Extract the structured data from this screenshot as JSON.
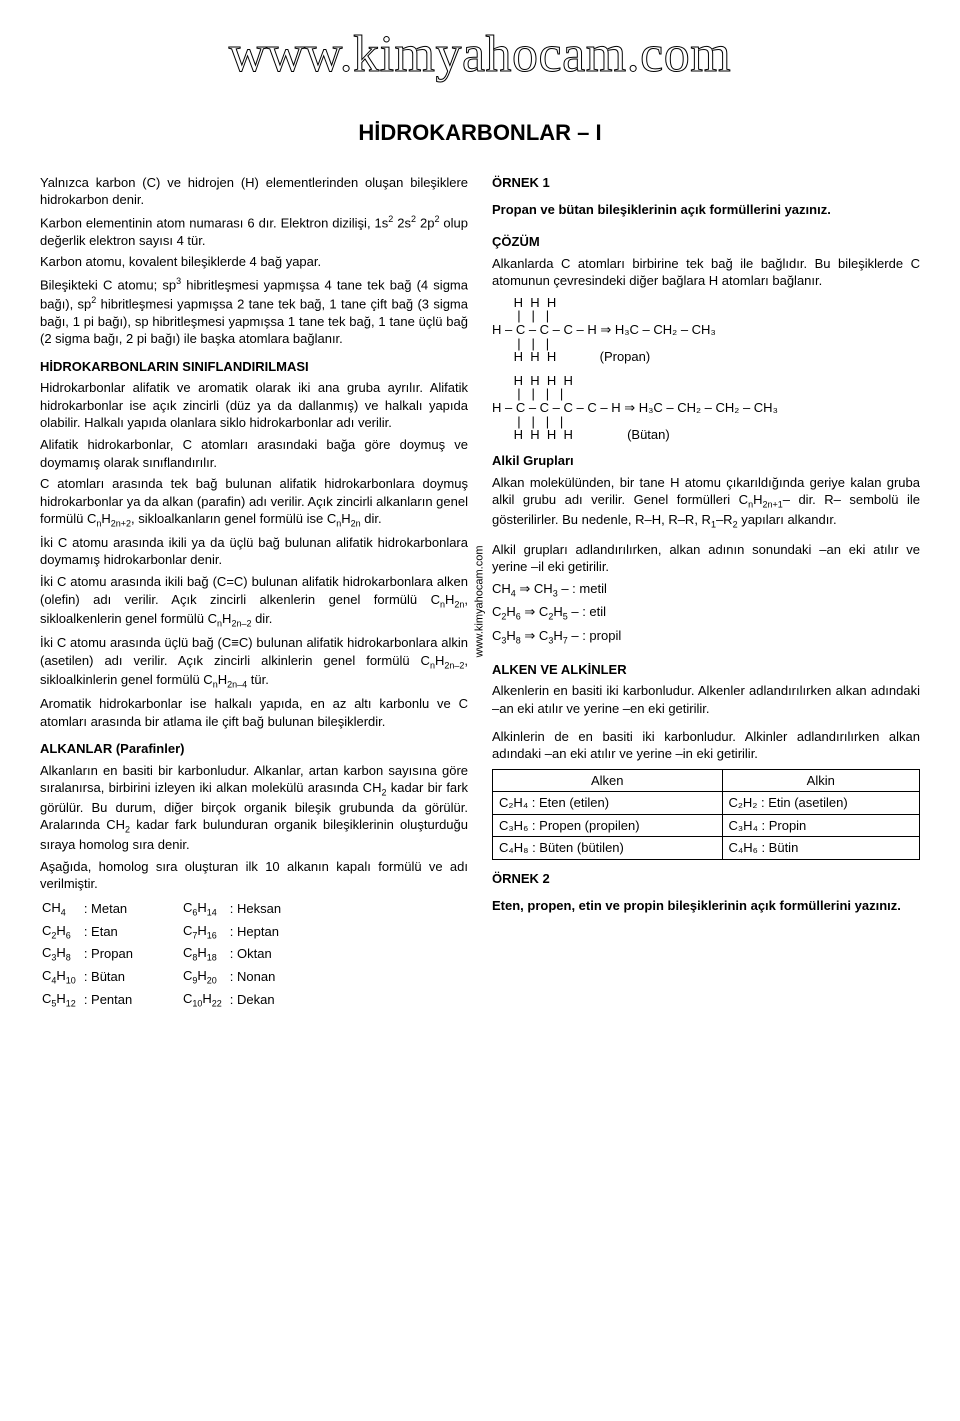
{
  "site_banner": "www.kimyahocam.com",
  "page_title": "HİDROKARBONLAR – I",
  "vertical_label": "www.kimyahocam.com",
  "left": {
    "p1": "Yalnızca karbon (C) ve hidrojen (H) elementlerinden oluşan bileşiklere hidrokarbon denir.",
    "p2a": "Karbon elementinin atom numarası 6 dır. Elektron dizilişi, 1s",
    "p2b": " 2s",
    "p2c": " 2p",
    "p2d": " olup değerlik elektron sayısı 4 tür.",
    "p3": "Karbon atomu, kovalent bileşiklerde 4 bağ yapar.",
    "p4a": "Bileşikteki C atomu; sp",
    "p4b": " hibritleşmesi yapmışsa 4 tane tek bağ (4 sigma bağı), sp",
    "p4c": " hibritleşmesi yapmışsa 2 tane tek bağ, 1 tane çift bağ (3 sigma bağı, 1 pi bağı), sp hibritleşmesi yapmışsa 1 tane tek bağ, 1 tane üçlü bağ (2 sigma bağı, 2 pi bağı) ile başka atomlara bağlanır.",
    "h_sinif": "HİDROKARBONLARIN SINIFLANDIRILMASI",
    "p5": "Hidrokarbonlar alifatik ve aromatik olarak iki ana gruba ayrılır. Alifatik hidrokarbonlar ise açık zincirli (düz ya da dallanmış) ve halkalı yapıda olabilir. Halkalı yapıda olanlara siklo hidrokarbonlar adı verilir.",
    "p6": "Alifatik hidrokarbonlar, C atomları arasındaki bağa göre doymuş ve doymamış olarak sınıflandırılır.",
    "p7a": "C atomları arasında tek bağ bulunan alifatik hidrokarbonlara doymuş hidrokarbonlar ya da alkan (parafin) adı verilir. Açık zincirli alkanların genel formülü C",
    "p7b": ", sikloalkanların genel formülü ise C",
    "p7c": " dir.",
    "p8": "İki C atomu arasında ikili ya da üçlü bağ bulunan alifatik hidrokarbonlara doymamış hidrokarbonlar denir.",
    "p9a": "İki C atomu arasında ikili bağ (C=C) bulunan alifatik hidrokarbonlara alken (olefin) adı verilir. Açık zincirli alkenlerin genel formülü C",
    "p9b": ", sikloalkenlerin genel formülü C",
    "p9c": " dir.",
    "p10a": "İki C atomu arasında üçlü bağ (C≡C) bulunan alifatik hidrokarbonlara alkin (asetilen) adı verilir. Açık zincirli alkinlerin genel formülü C",
    "p10b": ", sikloalkinlerin genel formülü C",
    "p10c": " tür.",
    "p11": "Aromatik hidrokarbonlar ise halkalı yapıda, en az altı karbonlu ve C atomları arasında bir atlama ile çift bağ bulunan bileşiklerdir.",
    "h_alkan": "ALKANLAR (Parafinler)",
    "p12a": "Alkanların en basiti bir karbonludur. Alkanlar, artan karbon sayısına göre sıralanırsa, birbirini izleyen iki alkan molekülü arasında CH",
    "p12b": " kadar bir fark görülür. Bu durum, diğer birçok organik bileşik grubunda da görülür. Aralarında CH",
    "p12c": " kadar fark bulunduran organik bileşiklerinin oluşturduğu sıraya homolog sıra denir.",
    "p13": "Aşağıda, homolog sıra oluşturan ilk 10 alkanın kapalı formülü ve adı verilmiştir.",
    "alkanes_left": [
      {
        "f": "CH",
        "s": "4",
        "n": ": Metan"
      },
      {
        "f": "C",
        "s2": "2",
        "f2": "H",
        "s": "6",
        "n": ": Etan"
      },
      {
        "f": "C",
        "s2": "3",
        "f2": "H",
        "s": "8",
        "n": ": Propan"
      },
      {
        "f": "C",
        "s2": "4",
        "f2": "H",
        "s": "10",
        "n": ": Bütan"
      },
      {
        "f": "C",
        "s2": "5",
        "f2": "H",
        "s": "12",
        "n": ": Pentan"
      }
    ],
    "alkanes_right": [
      {
        "f": "C",
        "s2": "6",
        "f2": "H",
        "s": "14",
        "n": ": Heksan"
      },
      {
        "f": "C",
        "s2": "7",
        "f2": "H",
        "s": "16",
        "n": ": Heptan"
      },
      {
        "f": "C",
        "s2": "8",
        "f2": "H",
        "s": "18",
        "n": ": Oktan"
      },
      {
        "f": "C",
        "s2": "9",
        "f2": "H",
        "s": "20",
        "n": ": Nonan"
      },
      {
        "f": "C",
        "s2": "10",
        "f2": "H",
        "s": "22",
        "n": ": Dekan"
      }
    ]
  },
  "right": {
    "h_ornek1": "ÖRNEK 1",
    "p_ornek1": "Propan ve bütan bileşiklerinin açık formüllerini yazınız.",
    "h_cozum": "ÇÖZÜM",
    "p_cozum": "Alkanlarda C atomları birbirine tek bağ ile bağlıdır. Bu bileşiklerde C atomunun çevresindeki diğer bağlara H atomları bağlanır.",
    "propan_top": "      H  H  H",
    "propan_bond1": "       |   |   |",
    "propan_mid": "H – C – C – C – H ⇒ H₃C – CH₂ – CH₃",
    "propan_bond2": "       |   |   |",
    "propan_bot": "      H  H  H            (Propan)",
    "butan_top": "      H  H  H  H",
    "butan_bond1": "       |   |   |   |",
    "butan_mid": "H – C – C – C – C – H ⇒ H₃C – CH₂ – CH₂ – CH₃",
    "butan_bond2": "       |   |   |   |",
    "butan_bot": "      H  H  H  H               (Bütan)",
    "h_alkil": "Alkil Grupları",
    "p_alkil_a": "Alkan molekülünden, bir tane H atomu çıkarıldığında geriye kalan gruba alkil grubu adı verilir. Genel formülleri C",
    "p_alkil_b": "– dir. R– sembolü ile gösterilirler. Bu nedenle, R–H, R–R, R",
    "p_alkil_c": "–R",
    "p_alkil_d": " yapıları alkandır.",
    "p_alkil2": "Alkil grupları adlandırılırken, alkan adının sonundaki –an eki atılır ve yerine –il eki getirilir.",
    "metil_a": "CH",
    "metil_b": " ⇒ CH",
    "metil_c": " –   : metil",
    "etil_a": "C",
    "etil_b": "H",
    "etil_c": " ⇒ C",
    "etil_d": "H",
    "etil_e": " – : etil",
    "propil_a": "C",
    "propil_b": "H",
    "propil_c": " ⇒ C",
    "propil_d": "H",
    "propil_e": " – : propil",
    "h_alken": "ALKEN VE ALKİNLER",
    "p_alken": "Alkenlerin en basiti iki karbonludur. Alkenler adlandırılırken alkan adındaki –an eki atılır ve yerine –en eki getirilir.",
    "p_alkin": "Alkinlerin de en basiti iki karbonludur. Alkinler adlandırılırken alkan adındaki –an eki atılır ve yerine –in eki getirilir.",
    "tbl_h1": "Alken",
    "tbl_h2": "Alkin",
    "tbl": [
      {
        "a": "C₂H₄ : Eten (etilen)",
        "b": "C₂H₂ : Etin (asetilen)"
      },
      {
        "a": "C₃H₆ : Propen (propilen)",
        "b": "C₃H₄ : Propin"
      },
      {
        "a": "C₄H₈ : Büten (bütilen)",
        "b": "C₄H₆ : Bütin"
      }
    ],
    "h_ornek2": "ÖRNEK 2",
    "p_ornek2": "Eten, propen, etin ve propin bileşiklerinin açık formüllerini yazınız."
  }
}
